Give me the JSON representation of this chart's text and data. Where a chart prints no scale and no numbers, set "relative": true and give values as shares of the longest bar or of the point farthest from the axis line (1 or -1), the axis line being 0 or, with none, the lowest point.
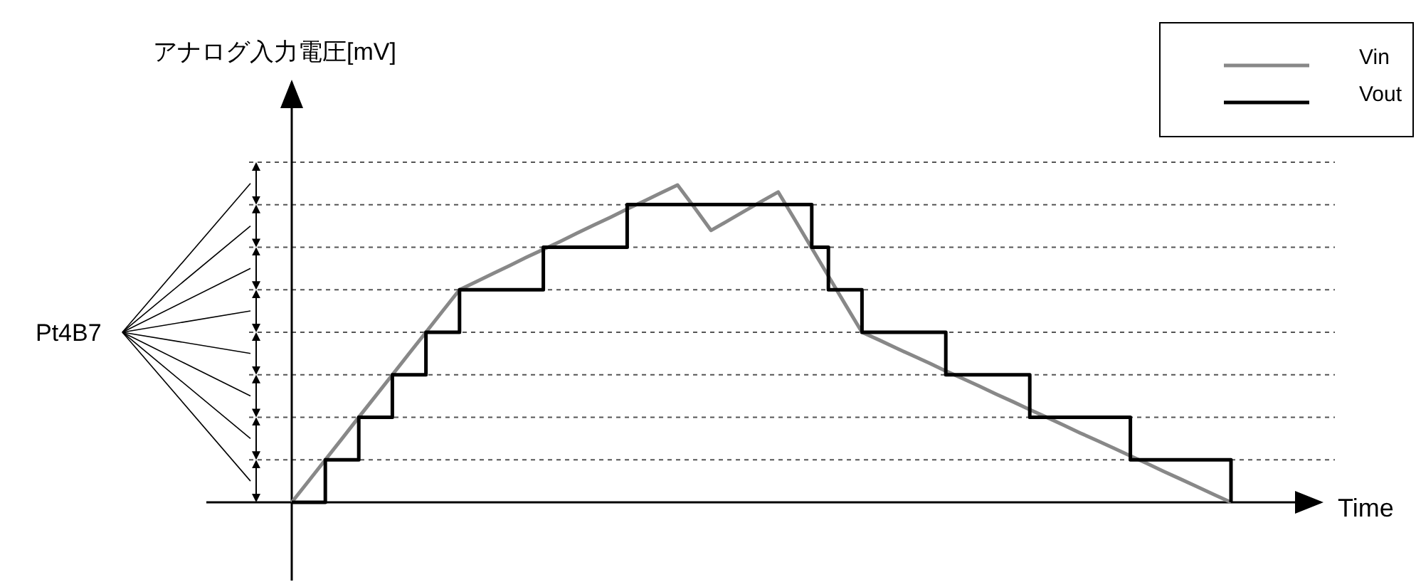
{
  "chart_data": {
    "type": "line",
    "relative": true,
    "ylabel": "アナログ入力電圧[mV]",
    "xlabel": "Time",
    "legend": "top right",
    "line_style": "solid",
    "marker": "none",
    "categories": [
      null,
      null,
      null,
      null,
      null,
      null,
      null,
      null,
      null,
      null,
      null,
      null,
      null,
      null,
      null,
      null,
      null,
      null,
      null,
      null,
      null,
      null,
      null,
      null,
      null,
      null,
      null,
      null,
      null,
      null,
      null,
      null,
      null,
      null,
      null,
      null,
      null,
      null,
      null,
      null,
      null,
      null,
      null,
      null,
      null,
      null,
      null,
      null,
      null,
      null,
      null,
      null,
      null,
      null,
      null,
      null,
      null
    ],
    "series": [
      {
        "name": "Vin",
        "color": "#888888",
        "type": "line",
        "values": [
          0,
          0.067,
          0.134,
          0.201,
          0.268,
          0.335,
          0.402,
          0.469,
          0.536,
          0.603,
          0.67,
          0.695,
          0.721,
          0.746,
          0.772,
          0.797,
          0.822,
          0.848,
          0.873,
          0.898,
          0.924,
          0.949,
          0.975,
          1,
          0.929,
          0.857,
          0.887,
          0.918,
          0.948,
          0.978,
          0.89,
          0.801,
          0.713,
          0.624,
          0.536,
          0.512,
          0.487,
          0.463,
          0.439,
          0.414,
          0.39,
          0.366,
          0.341,
          0.317,
          0.292,
          0.268,
          0.244,
          0.219,
          0.195,
          0.171,
          0.146,
          0.122,
          0.097,
          0.073,
          0.049,
          0.024,
          0
        ]
      },
      {
        "name": "Vout",
        "color": "#000000",
        "type": "step",
        "values": [
          0,
          0,
          0.134,
          0.134,
          0.268,
          0.268,
          0.402,
          0.402,
          0.536,
          0.536,
          0.67,
          0.67,
          0.67,
          0.67,
          0.67,
          0.804,
          0.804,
          0.804,
          0.804,
          0.804,
          0.938,
          0.938,
          0.938,
          0.938,
          0.938,
          0.938,
          0.938,
          0.938,
          0.938,
          0.938,
          0.938,
          0.804,
          0.67,
          0.67,
          0.536,
          0.536,
          0.536,
          0.536,
          0.536,
          0.402,
          0.402,
          0.402,
          0.402,
          0.402,
          0.268,
          0.268,
          0.268,
          0.268,
          0.268,
          0.268,
          0.134,
          0.134,
          0.134,
          0.134,
          0.134,
          0.134,
          0
        ]
      }
    ],
    "ref_lines": [
      {
        "axis": "y",
        "value": 0.134,
        "line_style": "dotted",
        "color": "#555555"
      },
      {
        "axis": "y",
        "value": 0.268,
        "line_style": "dotted",
        "color": "#555555"
      },
      {
        "axis": "y",
        "value": 0.402,
        "line_style": "dotted",
        "color": "#555555"
      },
      {
        "axis": "y",
        "value": 0.536,
        "line_style": "dotted",
        "color": "#555555"
      },
      {
        "axis": "y",
        "value": 0.67,
        "line_style": "dotted",
        "color": "#555555"
      },
      {
        "axis": "y",
        "value": 0.804,
        "line_style": "dotted",
        "color": "#555555"
      },
      {
        "axis": "y",
        "value": 0.938,
        "line_style": "dotted",
        "color": "#555555"
      },
      {
        "axis": "y",
        "value": 1.072,
        "line_style": "dotted",
        "color": "#555555"
      }
    ],
    "annotations": [
      "Pt4B7"
    ]
  }
}
